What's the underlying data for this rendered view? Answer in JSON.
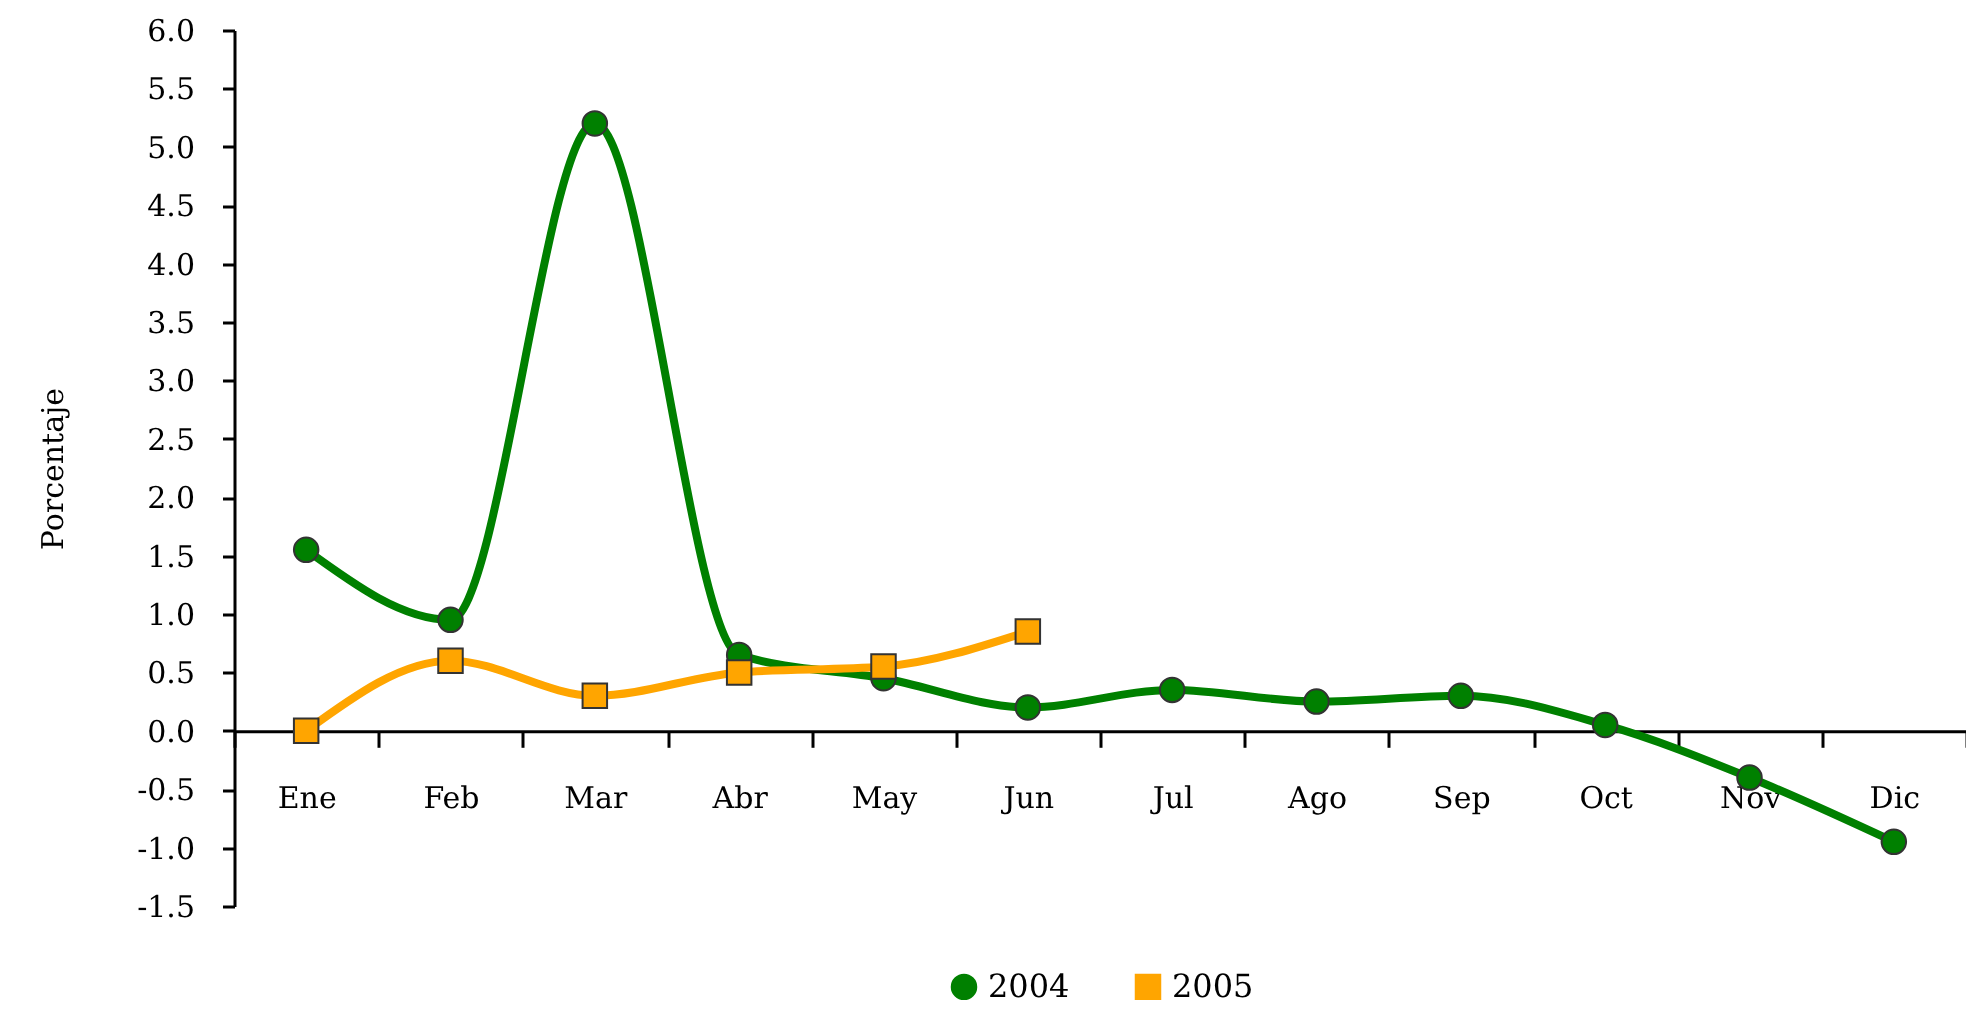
{
  "chart_data": {
    "type": "line",
    "ylabel": "Porcentaje",
    "categories": [
      "Ene",
      "Feb",
      "Mar",
      "Abr",
      "May",
      "Jun",
      "Jul",
      "Ago",
      "Sep",
      "Oct",
      "Nov",
      "Dic"
    ],
    "series": [
      {
        "name": "2004",
        "color": "#008000",
        "marker": "circle",
        "values": [
          1.55,
          0.95,
          5.2,
          0.65,
          0.45,
          0.2,
          0.35,
          0.25,
          0.3,
          0.05,
          -0.4,
          -0.95
        ]
      },
      {
        "name": "2005",
        "color": "#ffa500",
        "marker": "square",
        "values": [
          0.0,
          0.6,
          0.3,
          0.5,
          0.55,
          0.85,
          null,
          null,
          null,
          null,
          null,
          null
        ]
      }
    ],
    "ylim": [
      -1.5,
      6
    ],
    "yticks": [
      {
        "value": -1.5,
        "label": "-1.5"
      },
      {
        "value": -1,
        "label": "-1.0"
      },
      {
        "value": -0.5,
        "label": "-0.5"
      },
      {
        "value": 0,
        "label": "0.0"
      },
      {
        "value": 0.5,
        "label": "0.5"
      },
      {
        "value": 1,
        "label": "1.0"
      },
      {
        "value": 1.5,
        "label": "1.5"
      },
      {
        "value": 2,
        "label": "2.0"
      },
      {
        "value": 2.5,
        "label": "2.5"
      },
      {
        "value": 3,
        "label": "3.0"
      },
      {
        "value": 3.5,
        "label": "3.5"
      },
      {
        "value": 4,
        "label": "4.0"
      },
      {
        "value": 4.5,
        "label": "4.5"
      },
      {
        "value": 5,
        "label": "5.0"
      },
      {
        "value": 5.5,
        "label": "5.5"
      },
      {
        "value": 6,
        "label": "6.0"
      }
    ],
    "legend": "bottom",
    "line_style": "solid"
  }
}
